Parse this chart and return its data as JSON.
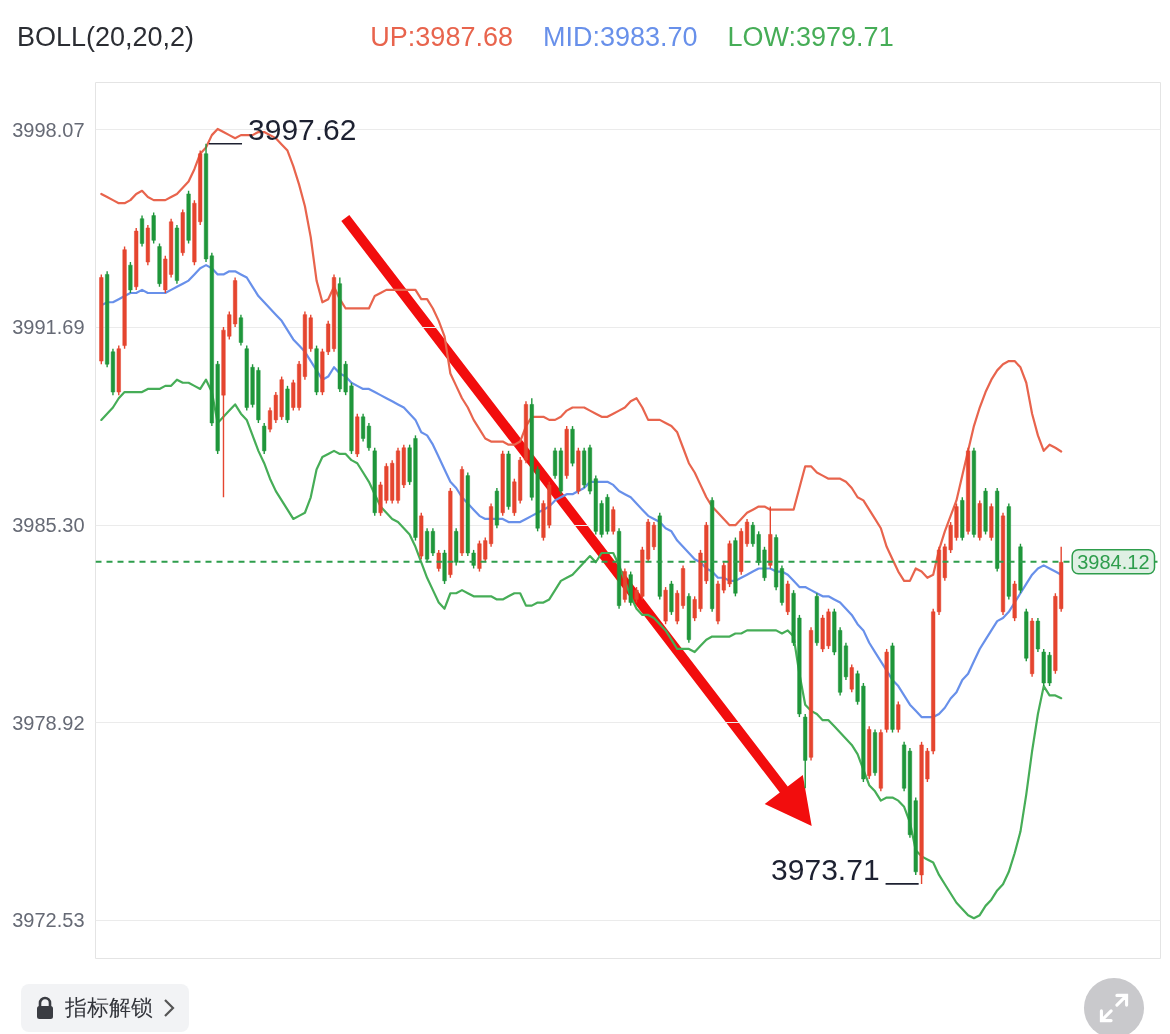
{
  "chart_data": {
    "type": "candlestick",
    "title": "BOLL(20,20,2)",
    "legend": "top",
    "tick_labels": "y",
    "grid": "y",
    "ylim": [
      3971.3,
      3999.6
    ],
    "yticks": [
      3998.07,
      3991.69,
      {
        "value": 3985.3,
        "label": "3985.30"
      },
      3978.92,
      3972.53
    ],
    "categories": [
      null,
      null,
      null,
      null,
      null,
      null,
      null,
      null,
      null,
      null,
      null,
      null,
      null,
      null,
      null,
      null,
      null,
      null,
      null,
      null,
      null,
      null,
      null,
      null,
      null,
      null,
      null,
      null,
      null,
      null,
      null,
      null,
      null,
      null,
      null,
      null,
      null,
      null,
      null,
      null,
      null,
      null,
      null,
      null,
      null,
      null,
      null,
      null,
      null,
      null,
      null,
      null,
      null,
      null,
      null,
      null,
      null,
      null,
      null,
      null,
      null,
      null,
      null,
      null,
      null,
      null,
      null,
      null,
      null,
      null,
      null,
      null,
      null,
      null,
      null,
      null,
      null,
      null,
      null,
      null,
      null,
      null,
      null,
      null,
      null,
      null,
      null,
      null,
      null,
      null,
      null,
      null,
      null,
      null,
      null,
      null,
      null,
      null,
      null,
      null,
      null,
      null,
      null,
      null,
      null,
      null,
      null,
      null,
      null,
      null,
      null,
      null,
      null,
      null,
      null,
      null,
      null,
      null,
      null,
      null,
      null,
      null,
      null,
      null,
      null,
      null,
      null,
      null,
      null,
      null,
      null,
      null,
      null,
      null,
      null,
      null,
      null,
      null,
      null,
      null,
      null,
      null,
      null,
      null,
      null,
      null,
      null,
      null,
      null,
      null,
      null,
      null,
      null,
      null,
      null,
      null,
      null,
      null,
      null,
      null,
      null,
      null,
      null,
      null,
      null,
      null
    ],
    "ohlc": [
      [
        3990.6,
        3993.4,
        3990.5,
        3993.3
      ],
      [
        3993.4,
        3993.5,
        3990.4,
        3990.5
      ],
      [
        3990.9,
        3991.0,
        3989.5,
        3989.6
      ],
      [
        3989.6,
        3991.1,
        3989.5,
        3991.0
      ],
      [
        3991.1,
        3994.3,
        3991.0,
        3994.2
      ],
      [
        3993.7,
        3993.8,
        3992.8,
        3992.9
      ],
      [
        3993.0,
        3994.9,
        3992.9,
        3994.8
      ],
      [
        3995.2,
        3995.3,
        3994.3,
        3994.4
      ],
      [
        3993.8,
        3995.0,
        3993.7,
        3994.9
      ],
      [
        3995.3,
        3995.4,
        3994.4,
        3994.5
      ],
      [
        3994.3,
        3994.4,
        3993.0,
        3993.1
      ],
      [
        3992.9,
        3994.0,
        3992.8,
        3993.9
      ],
      [
        3993.4,
        3995.2,
        3993.3,
        3995.1
      ],
      [
        3994.9,
        3995.0,
        3993.1,
        3993.2
      ],
      [
        3994.1,
        3995.5,
        3994.0,
        3995.4
      ],
      [
        3996.0,
        3996.1,
        3994.4,
        3994.5
      ],
      [
        3993.8,
        3995.8,
        3993.7,
        3995.7
      ],
      [
        3995.1,
        3997.4,
        3995.0,
        3997.3
      ],
      [
        3997.3,
        3997.62,
        3993.8,
        3993.9
      ],
      [
        3994.0,
        3994.1,
        3988.5,
        3988.6
      ],
      [
        3990.5,
        3990.6,
        3987.6,
        3987.7
      ],
      [
        3989.5,
        3991.7,
        3986.2,
        3991.6
      ],
      [
        3991.4,
        3992.2,
        3991.3,
        3992.1
      ],
      [
        3991.8,
        3993.3,
        3991.7,
        3993.2
      ],
      [
        3992.0,
        3992.1,
        3991.1,
        3991.2
      ],
      [
        3991.0,
        3991.1,
        3989.0,
        3989.1
      ],
      [
        3990.4,
        3990.5,
        3989.1,
        3989.2
      ],
      [
        3990.3,
        3990.4,
        3988.6,
        3988.7
      ],
      [
        3988.5,
        3988.6,
        3987.6,
        3987.7
      ],
      [
        3988.4,
        3989.1,
        3988.3,
        3989.0
      ],
      [
        3988.7,
        3989.6,
        3988.6,
        3989.5
      ],
      [
        3988.8,
        3990.1,
        3988.7,
        3990.0
      ],
      [
        3989.7,
        3989.8,
        3988.6,
        3988.7
      ],
      [
        3989.1,
        3990.0,
        3989.0,
        3989.9
      ],
      [
        3989.1,
        3990.6,
        3989.0,
        3990.5
      ],
      [
        3990.1,
        3992.2,
        3990.0,
        3992.1
      ],
      [
        3991.0,
        3992.1,
        3990.9,
        3992.0
      ],
      [
        3991.0,
        3991.1,
        3989.5,
        3989.6
      ],
      [
        3989.6,
        3991.0,
        3989.5,
        3990.9
      ],
      [
        3990.9,
        3991.9,
        3990.8,
        3991.8
      ],
      [
        3991.0,
        3993.4,
        3990.9,
        3993.3
      ],
      [
        3993.1,
        3993.3,
        3989.6,
        3989.7
      ],
      [
        3990.5,
        3990.6,
        3989.5,
        3989.6
      ],
      [
        3989.8,
        3989.9,
        3987.6,
        3987.7
      ],
      [
        3987.6,
        3988.9,
        3987.5,
        3988.8
      ],
      [
        3988.8,
        3988.9,
        3988.0,
        3988.1
      ],
      [
        3988.5,
        3988.6,
        3987.7,
        3987.8
      ],
      [
        3987.7,
        3987.8,
        3985.6,
        3985.7
      ],
      [
        3985.7,
        3986.7,
        3985.6,
        3986.6
      ],
      [
        3986.1,
        3987.3,
        3986.0,
        3987.2
      ],
      [
        3986.1,
        3987.4,
        3986.0,
        3987.3
      ],
      [
        3986.1,
        3987.8,
        3986.0,
        3987.7
      ],
      [
        3986.6,
        3987.9,
        3986.5,
        3987.8
      ],
      [
        3987.8,
        3987.9,
        3986.6,
        3986.7
      ],
      [
        3988.1,
        3988.2,
        3984.8,
        3984.9
      ],
      [
        3984.3,
        3985.7,
        3984.2,
        3985.6
      ],
      [
        3985.1,
        3985.2,
        3984.1,
        3984.2
      ],
      [
        3985.1,
        3985.2,
        3984.3,
        3984.4
      ],
      [
        3983.9,
        3984.5,
        3983.8,
        3984.4
      ],
      [
        3984.4,
        3984.5,
        3983.4,
        3983.5
      ],
      [
        3983.7,
        3986.5,
        3983.6,
        3986.4
      ],
      [
        3985.1,
        3985.2,
        3984.0,
        3984.1
      ],
      [
        3984.4,
        3987.2,
        3984.3,
        3987.1
      ],
      [
        3986.9,
        3987.0,
        3984.3,
        3984.4
      ],
      [
        3984.4,
        3984.5,
        3983.9,
        3984.0
      ],
      [
        3983.9,
        3984.8,
        3983.8,
        3984.7
      ],
      [
        3984.2,
        3984.9,
        3984.1,
        3984.8
      ],
      [
        3984.7,
        3986.0,
        3984.6,
        3985.9
      ],
      [
        3986.4,
        3986.5,
        3985.2,
        3985.3
      ],
      [
        3985.7,
        3987.7,
        3985.6,
        3987.6
      ],
      [
        3987.6,
        3987.7,
        3985.8,
        3985.9
      ],
      [
        3985.7,
        3986.8,
        3985.6,
        3986.7
      ],
      [
        3986.1,
        3987.5,
        3986.0,
        3987.4
      ],
      [
        3987.4,
        3989.3,
        3987.3,
        3989.2
      ],
      [
        3989.2,
        3989.4,
        3986.1,
        3986.2
      ],
      [
        3987.1,
        3987.2,
        3985.1,
        3985.2
      ],
      [
        3984.9,
        3986.1,
        3984.8,
        3986.0
      ],
      [
        3985.3,
        3986.7,
        3985.2,
        3986.6
      ],
      [
        3987.7,
        3987.8,
        3986.8,
        3986.9
      ],
      [
        3987.7,
        3987.8,
        3986.3,
        3986.4
      ],
      [
        3986.9,
        3988.5,
        3986.8,
        3988.4
      ],
      [
        3988.4,
        3988.5,
        3987.2,
        3987.3
      ],
      [
        3986.4,
        3987.8,
        3986.3,
        3987.7
      ],
      [
        3987.7,
        3987.8,
        3986.5,
        3986.6
      ],
      [
        3987.8,
        3987.9,
        3986.3,
        3986.4
      ],
      [
        3986.8,
        3986.9,
        3985.0,
        3985.1
      ],
      [
        3986.0,
        3986.1,
        3984.9,
        3985.0
      ],
      [
        3986.2,
        3986.3,
        3985.0,
        3985.1
      ],
      [
        3985.1,
        3985.9,
        3985.0,
        3985.8
      ],
      [
        3985.1,
        3985.2,
        3982.6,
        3982.7
      ],
      [
        3982.9,
        3983.9,
        3982.8,
        3983.8
      ],
      [
        3983.7,
        3983.8,
        3982.7,
        3982.8
      ],
      [
        3982.9,
        3983.3,
        3982.8,
        3983.2
      ],
      [
        3983.0,
        3984.6,
        3982.9,
        3984.5
      ],
      [
        3984.2,
        3985.5,
        3984.1,
        3985.4
      ],
      [
        3984.6,
        3985.4,
        3984.5,
        3985.3
      ],
      [
        3985.6,
        3985.7,
        3982.9,
        3983.0
      ],
      [
        3982.2,
        3983.3,
        3982.1,
        3983.2
      ],
      [
        3983.4,
        3983.5,
        3982.4,
        3982.5
      ],
      [
        3982.2,
        3983.2,
        3982.1,
        3983.1
      ],
      [
        3982.7,
        3984.0,
        3982.6,
        3983.9
      ],
      [
        3983.0,
        3983.1,
        3981.5,
        3981.6
      ],
      [
        3982.3,
        3983.0,
        3982.2,
        3982.9
      ],
      [
        3982.6,
        3984.5,
        3982.5,
        3984.4
      ],
      [
        3983.5,
        3985.4,
        3983.4,
        3985.3
      ],
      [
        3986.1,
        3986.2,
        3982.5,
        3982.6
      ],
      [
        3982.2,
        3983.5,
        3982.1,
        3983.4
      ],
      [
        3983.2,
        3984.1,
        3983.1,
        3984.0
      ],
      [
        3983.4,
        3984.8,
        3983.3,
        3984.7
      ],
      [
        3984.8,
        3984.9,
        3983.0,
        3983.1
      ],
      [
        3983.8,
        3985.2,
        3983.7,
        3985.1
      ],
      [
        3984.7,
        3985.5,
        3984.6,
        3985.4
      ],
      [
        3985.3,
        3985.4,
        3984.6,
        3984.7
      ],
      [
        3985.0,
        3985.1,
        3984.0,
        3984.1
      ],
      [
        3984.5,
        3984.6,
        3983.5,
        3983.6
      ],
      [
        3984.0,
        3985.9,
        3983.9,
        3985.0
      ],
      [
        3984.9,
        3985.0,
        3983.2,
        3983.3
      ],
      [
        3983.9,
        3984.0,
        3982.7,
        3982.8
      ],
      [
        3982.5,
        3983.5,
        3982.4,
        3983.4
      ],
      [
        3983.1,
        3983.2,
        3981.4,
        3981.5
      ],
      [
        3982.3,
        3982.4,
        3979.1,
        3979.2
      ],
      [
        3979.1,
        3979.2,
        3976.8,
        3977.7
      ],
      [
        3977.8,
        3982.0,
        3977.7,
        3981.9
      ],
      [
        3983.0,
        3983.1,
        3981.4,
        3981.5
      ],
      [
        3981.3,
        3982.4,
        3981.2,
        3982.3
      ],
      [
        3981.4,
        3982.6,
        3981.3,
        3982.5
      ],
      [
        3982.5,
        3982.6,
        3981.1,
        3981.2
      ],
      [
        3981.9,
        3982.0,
        3979.8,
        3979.9
      ],
      [
        3981.4,
        3981.5,
        3980.3,
        3980.4
      ],
      [
        3980.0,
        3980.8,
        3979.9,
        3980.7
      ],
      [
        3980.5,
        3980.6,
        3979.5,
        3979.6
      ],
      [
        3980.1,
        3980.2,
        3977.0,
        3977.1
      ],
      [
        3977.2,
        3978.8,
        3977.1,
        3978.7
      ],
      [
        3978.6,
        3978.7,
        3977.2,
        3977.3
      ],
      [
        3976.8,
        3978.7,
        3976.7,
        3978.6
      ],
      [
        3978.7,
        3981.3,
        3978.6,
        3981.2
      ],
      [
        3981.4,
        3981.5,
        3978.6,
        3978.7
      ],
      [
        3978.7,
        3979.6,
        3978.6,
        3979.5
      ],
      [
        3978.2,
        3978.3,
        3976.7,
        3976.8
      ],
      [
        3978.0,
        3978.1,
        3975.2,
        3975.3
      ],
      [
        3976.4,
        3976.5,
        3974.0,
        3974.1
      ],
      [
        3974.0,
        3978.3,
        3973.71,
        3978.2
      ],
      [
        3977.1,
        3978.1,
        3977.0,
        3978.0
      ],
      [
        3978.0,
        3982.6,
        3977.9,
        3982.5
      ],
      [
        3982.5,
        3984.6,
        3982.4,
        3984.5
      ],
      [
        3983.6,
        3984.7,
        3983.5,
        3984.6
      ],
      [
        3984.5,
        3985.4,
        3984.4,
        3985.3
      ],
      [
        3984.9,
        3986.0,
        3984.8,
        3985.9
      ],
      [
        3986.1,
        3986.2,
        3984.8,
        3984.9
      ],
      [
        3985.1,
        3987.8,
        3985.0,
        3987.7
      ],
      [
        3987.7,
        3987.8,
        3984.9,
        3985.0
      ],
      [
        3984.9,
        3986.1,
        3984.8,
        3986.0
      ],
      [
        3986.4,
        3986.5,
        3985.0,
        3985.1
      ],
      [
        3984.9,
        3986.0,
        3984.8,
        3985.9
      ],
      [
        3986.4,
        3986.5,
        3983.8,
        3983.9
      ],
      [
        3982.5,
        3985.7,
        3982.4,
        3985.6
      ],
      [
        3985.9,
        3986.0,
        3982.9,
        3983.0
      ],
      [
        3982.3,
        3983.5,
        3982.2,
        3983.4
      ],
      [
        3984.6,
        3984.7,
        3983.1,
        3983.2
      ],
      [
        3982.5,
        3982.6,
        3980.9,
        3981.0
      ],
      [
        3980.5,
        3982.3,
        3980.4,
        3982.2
      ],
      [
        3982.2,
        3982.3,
        3981.2,
        3981.3
      ],
      [
        3981.2,
        3981.3,
        3980.1,
        3980.2
      ],
      [
        3981.1,
        3981.2,
        3980.1,
        3980.2
      ],
      [
        3980.6,
        3983.1,
        3980.5,
        3983.0
      ],
      [
        3982.6,
        3984.6,
        3982.5,
        3984.1
      ]
    ],
    "colors": [
      "#e5452f",
      "#1f963b",
      "#1f963b",
      "#e5452f",
      "#e5452f",
      "#1f963b",
      "#e5452f",
      "#1f963b",
      "#e5452f",
      "#1f963b",
      "#1f963b",
      "#e5452f",
      "#e5452f",
      "#1f963b",
      "#e5452f",
      "#1f963b",
      "#e5452f",
      "#e5452f",
      "#1f963b",
      "#1f963b",
      "#1f963b",
      "#e5452f",
      "#e5452f",
      "#e5452f",
      "#1f963b",
      "#1f963b",
      "#1f963b",
      "#1f963b",
      "#1f963b",
      "#e5452f",
      "#e5452f",
      "#e5452f",
      "#1f963b",
      "#e5452f",
      "#e5452f",
      "#e5452f",
      "#e5452f",
      "#1f963b",
      "#e5452f",
      "#e5452f",
      "#e5452f",
      "#1f963b",
      "#1f963b",
      "#1f963b",
      "#e5452f",
      "#1f963b",
      "#1f963b",
      "#1f963b",
      "#e5452f",
      "#e5452f",
      "#e5452f",
      "#e5452f",
      "#e5452f",
      "#1f963b",
      "#1f963b",
      "#e5452f",
      "#1f963b",
      "#1f963b",
      "#e5452f",
      "#1f963b",
      "#e5452f",
      "#1f963b",
      "#e5452f",
      "#1f963b",
      "#1f963b",
      "#e5452f",
      "#e5452f",
      "#e5452f",
      "#1f963b",
      "#e5452f",
      "#1f963b",
      "#e5452f",
      "#e5452f",
      "#e5452f",
      "#1f963b",
      "#1f963b",
      "#e5452f",
      "#e5452f",
      "#1f963b",
      "#1f963b",
      "#e5452f",
      "#1f963b",
      "#e5452f",
      "#1f963b",
      "#1f963b",
      "#1f963b",
      "#1f963b",
      "#1f963b",
      "#e5452f",
      "#1f963b",
      "#e5452f",
      "#1f963b",
      "#e5452f",
      "#e5452f",
      "#e5452f",
      "#e5452f",
      "#1f963b",
      "#e5452f",
      "#1f963b",
      "#e5452f",
      "#e5452f",
      "#1f963b",
      "#e5452f",
      "#e5452f",
      "#e5452f",
      "#1f963b",
      "#e5452f",
      "#e5452f",
      "#e5452f",
      "#1f963b",
      "#e5452f",
      "#e5452f",
      "#1f963b",
      "#1f963b",
      "#1f963b",
      "#e5452f",
      "#1f963b",
      "#1f963b",
      "#e5452f",
      "#1f963b",
      "#1f963b",
      "#1f963b",
      "#e5452f",
      "#1f963b",
      "#e5452f",
      "#e5452f",
      "#1f963b",
      "#1f963b",
      "#1f963b",
      "#e5452f",
      "#1f963b",
      "#1f963b",
      "#e5452f",
      "#1f963b",
      "#e5452f",
      "#e5452f",
      "#1f963b",
      "#e5452f",
      "#1f963b",
      "#1f963b",
      "#1f963b",
      "#e5452f",
      "#e5452f",
      "#e5452f",
      "#e5452f",
      "#e5452f",
      "#e5452f",
      "#e5452f",
      "#1f963b",
      "#e5452f",
      "#1f963b",
      "#e5452f",
      "#1f963b",
      "#e5452f",
      "#1f963b",
      "#e5452f",
      "#1f963b",
      "#e5452f",
      "#1f963b",
      "#1f963b",
      "#e5452f",
      "#1f963b",
      "#1f963b",
      "#1f963b",
      "#e5452f",
      "#e5452f"
    ],
    "series": [
      {
        "name": "UP:3987.68",
        "type": "line",
        "color": "#e8644d",
        "values": [
          3996.0,
          3995.9,
          3995.8,
          3995.7,
          3995.7,
          3995.8,
          3996.0,
          3996.1,
          3995.9,
          3995.8,
          3995.8,
          3995.8,
          3995.9,
          3996.0,
          3996.2,
          3996.4,
          3996.8,
          3997.3,
          3997.5,
          3997.9,
          3998.1,
          3998.0,
          3997.9,
          3997.8,
          3997.9,
          3997.9,
          3997.9,
          3998.0,
          3998.0,
          3997.9,
          3997.8,
          3997.6,
          3997.4,
          3996.9,
          3996.3,
          3995.6,
          3994.6,
          3993.2,
          3992.5,
          3992.6,
          3993.0,
          3992.6,
          3992.3,
          3992.3,
          3992.3,
          3992.3,
          3992.3,
          3992.7,
          3992.8,
          3992.9,
          3992.9,
          3992.9,
          3992.9,
          3992.9,
          3992.9,
          3992.6,
          3992.6,
          3992.3,
          3991.9,
          3991.4,
          3990.2,
          3989.8,
          3989.4,
          3989.1,
          3988.7,
          3988.4,
          3988.1,
          3988.0,
          3988.0,
          3988.0,
          3987.9,
          3987.9,
          3988.0,
          3988.5,
          3988.8,
          3988.8,
          3988.8,
          3988.7,
          3988.7,
          3988.8,
          3989.0,
          3989.1,
          3989.1,
          3989.1,
          3989.0,
          3988.9,
          3988.8,
          3988.8,
          3988.9,
          3989.0,
          3989.1,
          3989.3,
          3989.4,
          3989.1,
          3988.7,
          3988.7,
          3988.7,
          3988.6,
          3988.5,
          3988.3,
          3987.8,
          3987.3,
          3987.0,
          3986.6,
          3986.2,
          3985.9,
          3985.7,
          3985.5,
          3985.3,
          3985.3,
          3985.5,
          3985.7,
          3985.8,
          3985.9,
          3985.9,
          3985.8,
          3985.8,
          3985.8,
          3985.8,
          3985.8,
          3986.5,
          3987.2,
          3987.2,
          3987.0,
          3986.9,
          3986.8,
          3986.8,
          3986.8,
          3986.7,
          3986.5,
          3986.2,
          3986.1,
          3985.8,
          3985.5,
          3985.2,
          3984.6,
          3984.2,
          3983.8,
          3983.5,
          3983.5,
          3983.9,
          3983.8,
          3983.6,
          3983.7,
          3984.5,
          3985.1,
          3985.6,
          3986.1,
          3986.9,
          3987.7,
          3988.5,
          3989.1,
          3989.6,
          3990.0,
          3990.3,
          3990.5,
          3990.6,
          3990.6,
          3990.4,
          3989.9,
          3988.9,
          3988.2,
          3987.7,
          3987.9,
          3987.8,
          3987.68
        ]
      },
      {
        "name": "MID:3983.70",
        "type": "line",
        "color": "#6890ea",
        "values": [
          3992.4,
          3992.5,
          3992.5,
          3992.6,
          3992.7,
          3992.8,
          3992.8,
          3992.9,
          3992.8,
          3992.8,
          3992.8,
          3992.8,
          3992.9,
          3993.0,
          3993.1,
          3993.2,
          3993.4,
          3993.6,
          3993.7,
          3993.6,
          3993.4,
          3993.4,
          3993.5,
          3993.5,
          3993.4,
          3993.3,
          3993.0,
          3992.7,
          3992.5,
          3992.3,
          3992.1,
          3991.9,
          3991.6,
          3991.3,
          3991.1,
          3990.9,
          3990.6,
          3990.3,
          3990.0,
          3990.1,
          3990.4,
          3990.2,
          3990.1,
          3989.9,
          3989.8,
          3989.7,
          3989.7,
          3989.6,
          3989.5,
          3989.4,
          3989.3,
          3989.2,
          3989.1,
          3988.9,
          3988.7,
          3988.3,
          3988.2,
          3987.9,
          3987.5,
          3987.1,
          3986.7,
          3986.5,
          3986.2,
          3986.0,
          3985.8,
          3985.6,
          3985.5,
          3985.5,
          3985.5,
          3985.5,
          3985.4,
          3985.4,
          3985.4,
          3985.5,
          3985.6,
          3985.7,
          3985.8,
          3985.9,
          3986.1,
          3986.2,
          3986.3,
          3986.3,
          3986.4,
          3986.5,
          3986.7,
          3986.7,
          3986.7,
          3986.7,
          3986.6,
          3986.4,
          3986.3,
          3986.2,
          3986.0,
          3985.8,
          3985.6,
          3985.5,
          3985.4,
          3985.2,
          3985.1,
          3984.8,
          3984.6,
          3984.4,
          3984.2,
          3984.1,
          3983.9,
          3983.8,
          3983.6,
          3983.6,
          3983.5,
          3983.5,
          3983.6,
          3983.7,
          3983.8,
          3983.9,
          3983.9,
          3983.9,
          3983.8,
          3983.8,
          3983.7,
          3983.5,
          3983.3,
          3983.3,
          3983.2,
          3983.1,
          3983.0,
          3983.0,
          3982.9,
          3982.8,
          3982.6,
          3982.4,
          3982.1,
          3981.9,
          3981.5,
          3981.2,
          3980.9,
          3980.6,
          3980.3,
          3980.1,
          3979.8,
          3979.5,
          3979.3,
          3979.1,
          3979.1,
          3979.1,
          3979.2,
          3979.4,
          3979.7,
          3979.9,
          3980.3,
          3980.5,
          3980.9,
          3981.3,
          3981.6,
          3981.9,
          3982.2,
          3982.3,
          3982.5,
          3982.8,
          3983.1,
          3983.4,
          3983.7,
          3983.9,
          3984.0,
          3983.9,
          3983.8,
          3983.7
        ]
      },
      {
        "name": "LOW:3979.71",
        "type": "line",
        "color": "#46ad57",
        "values": [
          3988.7,
          3988.9,
          3989.1,
          3989.4,
          3989.6,
          3989.6,
          3989.6,
          3989.6,
          3989.7,
          3989.7,
          3989.7,
          3989.8,
          3989.8,
          3990.0,
          3989.9,
          3989.9,
          3989.8,
          3989.7,
          3990.0,
          3989.6,
          3988.6,
          3988.8,
          3989.0,
          3989.2,
          3988.9,
          3988.7,
          3988.2,
          3987.7,
          3987.3,
          3986.8,
          3986.4,
          3986.1,
          3985.8,
          3985.5,
          3985.6,
          3985.7,
          3986.2,
          3987.1,
          3987.5,
          3987.6,
          3987.7,
          3987.6,
          3987.6,
          3987.4,
          3987.3,
          3987.0,
          3986.7,
          3986.3,
          3985.9,
          3985.7,
          3985.5,
          3985.4,
          3985.2,
          3985.0,
          3984.6,
          3984.1,
          3983.6,
          3983.2,
          3982.8,
          3982.6,
          3983.1,
          3983.1,
          3983.2,
          3983.1,
          3983.0,
          3983.0,
          3983.0,
          3983.0,
          3982.9,
          3982.9,
          3983.0,
          3983.1,
          3983.1,
          3982.7,
          3982.7,
          3982.8,
          3982.8,
          3982.9,
          3983.2,
          3983.5,
          3983.6,
          3983.7,
          3983.9,
          3984.1,
          3984.3,
          3984.1,
          3984.4,
          3984.4,
          3984.4,
          3984.0,
          3983.5,
          3983.0,
          3982.6,
          3982.4,
          3982.4,
          3982.3,
          3982.1,
          3981.9,
          3981.6,
          3981.3,
          3981.3,
          3981.3,
          3981.2,
          3981.4,
          3981.6,
          3981.7,
          3981.7,
          3981.7,
          3981.7,
          3981.8,
          3981.8,
          3981.9,
          3981.9,
          3981.9,
          3981.9,
          3981.9,
          3981.9,
          3981.8,
          3981.9,
          3981.7,
          3980.5,
          3979.5,
          3979.3,
          3979.2,
          3979.0,
          3979.0,
          3978.8,
          3978.6,
          3978.4,
          3978.2,
          3977.9,
          3977.4,
          3976.9,
          3976.7,
          3976.4,
          3976.5,
          3976.5,
          3976.4,
          3976.2,
          3975.7,
          3974.8,
          3974.6,
          3974.5,
          3974.4,
          3974.0,
          3973.7,
          3973.4,
          3973.1,
          3972.9,
          3972.7,
          3972.6,
          3972.7,
          3973.0,
          3973.2,
          3973.5,
          3973.7,
          3974.1,
          3974.7,
          3975.4,
          3976.6,
          3978.0,
          3979.2,
          3980.1,
          3979.8,
          3979.8,
          3979.71
        ]
      }
    ],
    "ref_lines": [
      {
        "axis": "y",
        "value": 3984.12,
        "label": "3984.12",
        "color": "#2e9d4c",
        "line_style": "dashed"
      }
    ],
    "annotations": [
      "3997.62",
      "3973.71",
      "指标解锁"
    ]
  }
}
